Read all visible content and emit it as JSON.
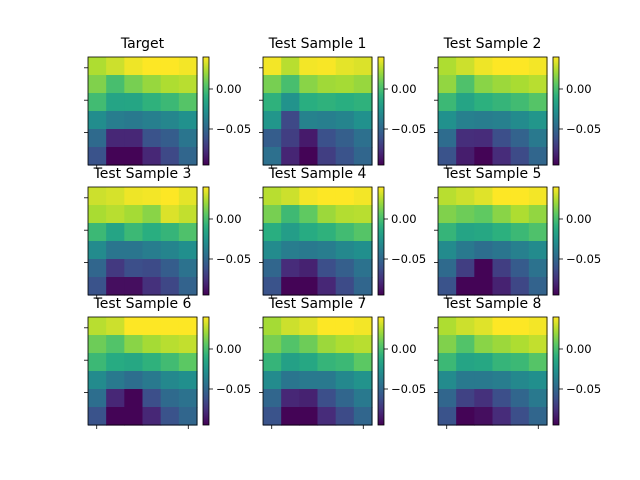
{
  "chart_data": {
    "type": "heatmap",
    "colormap": "viridis",
    "value_range": [
      -0.095,
      0.04
    ],
    "colorbar_ticks": [
      {
        "value": 0.0,
        "label": "0.00"
      },
      {
        "value": -0.05,
        "label": "−0.05"
      }
    ],
    "grid": false,
    "panels": [
      {
        "title": "Target",
        "values": [
          [
            0.024,
            0.03,
            0.037,
            0.04,
            0.04,
            0.038
          ],
          [
            0.014,
            0.0,
            0.012,
            0.019,
            0.024,
            0.026
          ],
          [
            -0.002,
            -0.016,
            -0.015,
            -0.008,
            -0.004,
            0.004
          ],
          [
            -0.029,
            -0.038,
            -0.04,
            -0.037,
            -0.033,
            -0.027
          ],
          [
            -0.048,
            -0.08,
            -0.08,
            -0.06,
            -0.055,
            -0.042
          ],
          [
            -0.06,
            -0.094,
            -0.094,
            -0.08,
            -0.065,
            -0.05
          ]
        ]
      },
      {
        "title": "Test Sample 1",
        "values": [
          [
            0.038,
            0.026,
            0.038,
            0.039,
            0.035,
            0.033
          ],
          [
            0.012,
            0.0,
            0.016,
            0.021,
            0.022,
            0.019
          ],
          [
            -0.008,
            -0.026,
            -0.01,
            -0.008,
            -0.01,
            -0.008
          ],
          [
            -0.024,
            -0.065,
            -0.035,
            -0.037,
            -0.034,
            -0.027
          ],
          [
            -0.055,
            -0.07,
            -0.085,
            -0.061,
            -0.054,
            -0.045
          ],
          [
            -0.045,
            -0.081,
            -0.094,
            -0.07,
            -0.06,
            -0.05
          ]
        ]
      },
      {
        "title": "Test Sample 2",
        "values": [
          [
            0.024,
            0.03,
            0.037,
            0.04,
            0.04,
            0.038
          ],
          [
            0.018,
            0.002,
            0.016,
            0.02,
            0.023,
            0.026
          ],
          [
            -0.004,
            -0.016,
            -0.009,
            -0.006,
            -0.002,
            0.004
          ],
          [
            -0.027,
            -0.036,
            -0.038,
            -0.036,
            -0.03,
            -0.024
          ],
          [
            -0.047,
            -0.077,
            -0.078,
            -0.062,
            -0.052,
            -0.04
          ],
          [
            -0.06,
            -0.084,
            -0.094,
            -0.078,
            -0.064,
            -0.05
          ]
        ]
      },
      {
        "title": "Test Sample 3",
        "values": [
          [
            0.03,
            0.032,
            0.037,
            0.038,
            0.04,
            0.035
          ],
          [
            0.023,
            0.026,
            0.022,
            0.016,
            0.033,
            0.028
          ],
          [
            -0.004,
            -0.016,
            -0.004,
            -0.01,
            -0.006,
            0.002
          ],
          [
            -0.03,
            -0.042,
            -0.042,
            -0.038,
            -0.034,
            -0.028
          ],
          [
            -0.05,
            -0.072,
            -0.062,
            -0.064,
            -0.055,
            -0.044
          ],
          [
            -0.06,
            -0.09,
            -0.09,
            -0.076,
            -0.066,
            -0.052
          ]
        ]
      },
      {
        "title": "Test Sample 4",
        "values": [
          [
            0.026,
            0.03,
            0.038,
            0.04,
            0.04,
            0.038
          ],
          [
            0.012,
            -0.003,
            0.007,
            0.02,
            0.025,
            0.026
          ],
          [
            -0.01,
            -0.02,
            -0.012,
            -0.008,
            -0.002,
            0.004
          ],
          [
            -0.03,
            -0.038,
            -0.04,
            -0.038,
            -0.032,
            -0.028
          ],
          [
            -0.05,
            -0.078,
            -0.082,
            -0.062,
            -0.054,
            -0.044
          ],
          [
            -0.06,
            -0.094,
            -0.094,
            -0.08,
            -0.064,
            -0.05
          ]
        ]
      },
      {
        "title": "Test Sample 5",
        "values": [
          [
            0.026,
            0.03,
            0.034,
            0.04,
            0.04,
            0.038
          ],
          [
            0.014,
            0.01,
            0.007,
            0.016,
            0.024,
            0.018
          ],
          [
            -0.006,
            -0.016,
            -0.014,
            -0.009,
            -0.004,
            0.002
          ],
          [
            -0.03,
            -0.04,
            -0.046,
            -0.042,
            -0.036,
            -0.03
          ],
          [
            -0.048,
            -0.07,
            -0.094,
            -0.07,
            -0.056,
            -0.044
          ],
          [
            -0.06,
            -0.094,
            -0.094,
            -0.082,
            -0.066,
            -0.052
          ]
        ]
      },
      {
        "title": "Test Sample 6",
        "values": [
          [
            0.026,
            0.03,
            0.04,
            0.04,
            0.04,
            0.04
          ],
          [
            0.01,
            0.003,
            0.016,
            0.022,
            0.026,
            0.028
          ],
          [
            -0.004,
            -0.012,
            -0.014,
            -0.008,
            -0.002,
            0.006
          ],
          [
            -0.03,
            -0.04,
            -0.046,
            -0.04,
            -0.032,
            -0.028
          ],
          [
            -0.046,
            -0.08,
            -0.094,
            -0.062,
            -0.048,
            -0.044
          ],
          [
            -0.06,
            -0.094,
            -0.094,
            -0.08,
            -0.06,
            -0.05
          ]
        ]
      },
      {
        "title": "Test Sample 7",
        "values": [
          [
            0.022,
            0.03,
            0.034,
            0.04,
            0.04,
            0.038
          ],
          [
            0.012,
            0.003,
            0.01,
            0.02,
            0.024,
            0.026
          ],
          [
            -0.006,
            -0.018,
            -0.014,
            -0.006,
            -0.004,
            0.006
          ],
          [
            -0.03,
            -0.042,
            -0.04,
            -0.04,
            -0.032,
            -0.026
          ],
          [
            -0.05,
            -0.08,
            -0.082,
            -0.062,
            -0.05,
            -0.04
          ],
          [
            -0.06,
            -0.094,
            -0.094,
            -0.078,
            -0.064,
            -0.05
          ]
        ]
      },
      {
        "title": "Test Sample 8",
        "values": [
          [
            0.024,
            0.03,
            0.034,
            0.04,
            0.04,
            0.038
          ],
          [
            0.014,
            0.003,
            0.016,
            0.02,
            0.024,
            0.028
          ],
          [
            -0.004,
            -0.016,
            -0.014,
            -0.006,
            -0.004,
            0.004
          ],
          [
            -0.03,
            -0.04,
            -0.04,
            -0.038,
            -0.032,
            -0.028
          ],
          [
            -0.05,
            -0.068,
            -0.076,
            -0.062,
            -0.05,
            -0.04
          ],
          [
            -0.06,
            -0.094,
            -0.09,
            -0.078,
            -0.062,
            -0.05
          ]
        ]
      }
    ]
  }
}
